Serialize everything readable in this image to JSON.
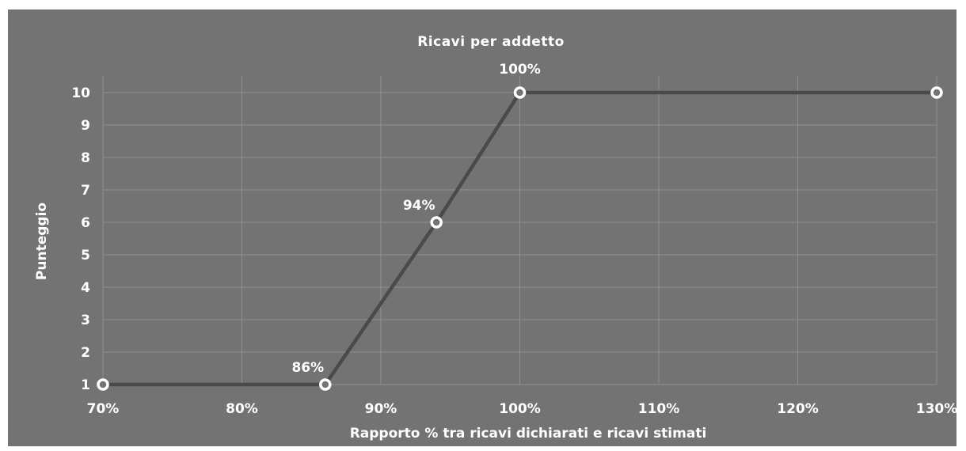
{
  "chart_data": {
    "type": "line",
    "title": "Ricavi per addetto",
    "xlabel": "Rapporto % tra ricavi dichiarati e ricavi stimati",
    "ylabel": "Punteggio",
    "xlim": [
      70,
      130
    ],
    "ylim": [
      1,
      10
    ],
    "x_ticks": [
      70,
      80,
      90,
      100,
      110,
      120,
      130
    ],
    "x_tick_labels": [
      "70%",
      "80%",
      "90%",
      "100%",
      "110%",
      "120%",
      "130%"
    ],
    "y_ticks": [
      1,
      2,
      3,
      4,
      5,
      6,
      7,
      8,
      9,
      10
    ],
    "y_tick_labels": [
      "1",
      "2",
      "3",
      "4",
      "5",
      "6",
      "7",
      "8",
      "9",
      "10"
    ],
    "grid": true,
    "series": [
      {
        "points": [
          {
            "x": 70,
            "y": 1,
            "label": ""
          },
          {
            "x": 86,
            "y": 1,
            "label": "86%"
          },
          {
            "x": 94,
            "y": 6,
            "label": "94%"
          },
          {
            "x": 100,
            "y": 10,
            "label": "100%"
          },
          {
            "x": 130,
            "y": 10,
            "label": ""
          }
        ]
      }
    ],
    "colors": {
      "background": "#737373",
      "line": "#4a4a4a",
      "marker_stroke": "#ffffff",
      "grid": "#8f8f8f",
      "text": "#ffffff"
    }
  }
}
